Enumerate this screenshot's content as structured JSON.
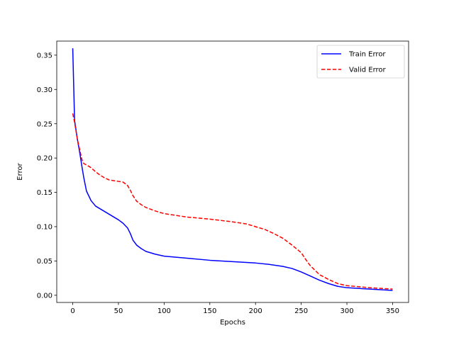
{
  "chart_data": {
    "type": "line",
    "title": "",
    "xlabel": "Epochs",
    "ylabel": "Error",
    "xlim": [
      -17.5,
      367.5
    ],
    "ylim": [
      -0.0105,
      0.3705
    ],
    "xticks": [
      0,
      50,
      100,
      150,
      200,
      250,
      300,
      350
    ],
    "yticks": [
      0.0,
      0.05,
      0.1,
      0.15,
      0.2,
      0.25,
      0.3,
      0.35
    ],
    "grid": false,
    "legend": "top-right",
    "series": [
      {
        "name": "Train Error",
        "color": "#0000ff",
        "dash": "solid",
        "x": [
          0,
          2,
          5,
          8,
          10,
          12,
          15,
          20,
          25,
          30,
          40,
          50,
          55,
          60,
          63,
          66,
          70,
          75,
          80,
          90,
          100,
          125,
          150,
          175,
          200,
          215,
          230,
          240,
          250,
          260,
          270,
          280,
          290,
          300,
          325,
          350
        ],
        "y": [
          0.36,
          0.255,
          0.228,
          0.205,
          0.188,
          0.172,
          0.152,
          0.138,
          0.13,
          0.126,
          0.118,
          0.11,
          0.105,
          0.098,
          0.09,
          0.08,
          0.073,
          0.068,
          0.064,
          0.06,
          0.057,
          0.054,
          0.051,
          0.049,
          0.047,
          0.045,
          0.042,
          0.039,
          0.034,
          0.028,
          0.022,
          0.017,
          0.013,
          0.011,
          0.009,
          0.007
        ]
      },
      {
        "name": "Valid Error",
        "color": "#ff0000",
        "dash": "dashed",
        "x": [
          0,
          2,
          5,
          8,
          10,
          12,
          15,
          20,
          25,
          30,
          35,
          40,
          45,
          50,
          55,
          60,
          63,
          66,
          70,
          75,
          80,
          90,
          100,
          125,
          150,
          175,
          190,
          200,
          210,
          220,
          230,
          240,
          250,
          255,
          260,
          270,
          280,
          290,
          300,
          325,
          350
        ],
        "y": [
          0.265,
          0.252,
          0.228,
          0.21,
          0.198,
          0.192,
          0.19,
          0.186,
          0.18,
          0.175,
          0.171,
          0.168,
          0.167,
          0.166,
          0.165,
          0.16,
          0.153,
          0.145,
          0.137,
          0.132,
          0.128,
          0.123,
          0.119,
          0.114,
          0.111,
          0.107,
          0.104,
          0.1,
          0.096,
          0.09,
          0.083,
          0.073,
          0.062,
          0.052,
          0.043,
          0.03,
          0.023,
          0.017,
          0.014,
          0.011,
          0.009
        ]
      }
    ]
  }
}
